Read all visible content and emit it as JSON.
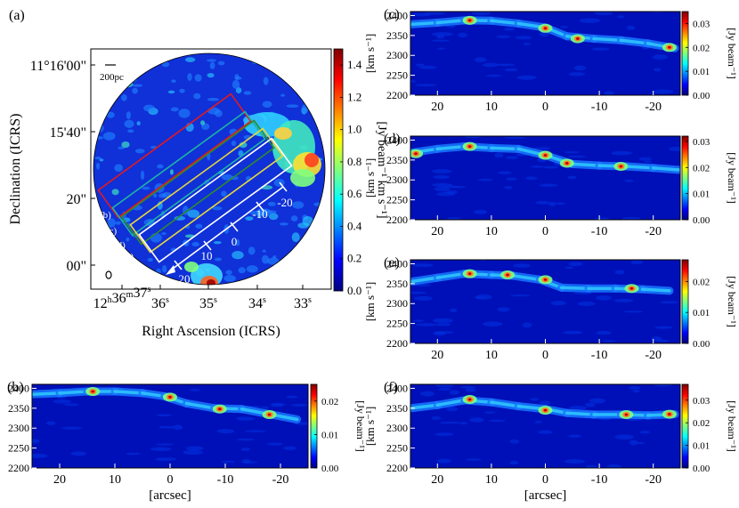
{
  "colorscale": [
    "#00007f",
    "#0000ff",
    "#007fff",
    "#00ffff",
    "#7fff7f",
    "#ffff00",
    "#ff7f00",
    "#ff0000",
    "#7f0000"
  ],
  "box_colors": {
    "b": "#e41a1c",
    "c": "#1fb3a3",
    "d": "#2e8b2e",
    "e": "#e6d83a",
    "f": "#ffffff"
  },
  "chart_data": [
    {
      "id": "a",
      "type": "heatmap",
      "panel_label": "(a)",
      "xlabel": "Right Ascension (ICRS)",
      "ylabel": "Declination (ICRS)",
      "x_ticks": [
        {
          "label": "12h36m37s",
          "html": [
            "12",
            "h",
            "36",
            "m",
            "37",
            "s"
          ]
        },
        {
          "label": "36s",
          "html": [
            "36",
            "s"
          ]
        },
        {
          "label": "35s",
          "html": [
            "35",
            "s"
          ]
        },
        {
          "label": "34s",
          "html": [
            "34",
            "s"
          ]
        },
        {
          "label": "33s",
          "html": [
            "33",
            "s"
          ]
        }
      ],
      "y_ticks": [
        "11°16'00\"",
        "15'40\"",
        "20\"",
        "00\""
      ],
      "colorbar": {
        "label": "[Jy beam⁻¹ km s⁻¹]",
        "min": 0.0,
        "max": 1.5,
        "ticks": [
          "0.0",
          "0.2",
          "0.4",
          "0.6",
          "0.8",
          "1.0",
          "1.2",
          "1.4"
        ]
      },
      "scalebar_label": "200pc",
      "slit_labels": [
        "(b)",
        "(c)",
        "(d)",
        "(e)",
        "(f)"
      ],
      "offset_ticks": [
        "20",
        "10",
        "0",
        "-10",
        "-20"
      ]
    },
    {
      "id": "b",
      "type": "heatmap",
      "panel_label": "(b)",
      "xlabel": "[arcsec]",
      "ylabel": "[km s⁻¹]",
      "x_ticks": [
        "20",
        "10",
        "0",
        "-10",
        "-20"
      ],
      "xlim": [
        25,
        -25
      ],
      "y_ticks": [
        "2400",
        "2350",
        "2300",
        "2250",
        "2200"
      ],
      "ylim": [
        2200,
        2410
      ],
      "colorbar": {
        "label": "[Jy beam⁻¹]",
        "max": 0.025,
        "ticks": [
          "0.00",
          "0.01",
          "0.02"
        ]
      },
      "ridge": [
        [
          25,
          2385
        ],
        [
          20,
          2388
        ],
        [
          15,
          2392
        ],
        [
          10,
          2392
        ],
        [
          5,
          2388
        ],
        [
          1,
          2380
        ],
        [
          -3,
          2362
        ],
        [
          -8,
          2350
        ],
        [
          -13,
          2348
        ],
        [
          -18,
          2335
        ],
        [
          -23,
          2322
        ]
      ],
      "peaks": [
        [
          14,
          2392
        ],
        [
          0,
          2378
        ],
        [
          -9,
          2348
        ],
        [
          -18,
          2334
        ]
      ]
    },
    {
      "id": "c",
      "type": "heatmap",
      "panel_label": "(c)",
      "xlabel": "",
      "ylabel": "[km s⁻¹]",
      "x_ticks": [
        "20",
        "10",
        "0",
        "-10",
        "-20"
      ],
      "xlim": [
        25,
        -25
      ],
      "y_ticks": [
        "2400",
        "2350",
        "2300",
        "2250",
        "2200"
      ],
      "ylim": [
        2200,
        2410
      ],
      "colorbar": {
        "label": "[Jy beam⁻¹]",
        "max": 0.035,
        "ticks": [
          "0.00",
          "0.01",
          "0.02",
          "0.03"
        ]
      },
      "ridge": [
        [
          25,
          2378
        ],
        [
          20,
          2382
        ],
        [
          15,
          2388
        ],
        [
          10,
          2387
        ],
        [
          5,
          2380
        ],
        [
          0,
          2370
        ],
        [
          -4,
          2348
        ],
        [
          -9,
          2342
        ],
        [
          -14,
          2338
        ],
        [
          -19,
          2330
        ],
        [
          -24,
          2318
        ]
      ],
      "peaks": [
        [
          14,
          2388
        ],
        [
          0,
          2368
        ],
        [
          -6,
          2342
        ],
        [
          -23,
          2320
        ]
      ]
    },
    {
      "id": "d",
      "type": "heatmap",
      "panel_label": "(d)",
      "xlabel": "",
      "ylabel": "[km s⁻¹]",
      "x_ticks": [
        "20",
        "10",
        "0",
        "-10",
        "-20"
      ],
      "xlim": [
        25,
        -25
      ],
      "y_ticks": [
        "2400",
        "2350",
        "2300",
        "2250",
        "2200"
      ],
      "ylim": [
        2200,
        2410
      ],
      "colorbar": {
        "label": "[Jy beam⁻¹]",
        "max": 0.032,
        "ticks": [
          "0.00",
          "0.01",
          "0.02",
          "0.03"
        ]
      },
      "ridge": [
        [
          25,
          2368
        ],
        [
          20,
          2378
        ],
        [
          15,
          2384
        ],
        [
          10,
          2380
        ],
        [
          5,
          2378
        ],
        [
          0,
          2362
        ],
        [
          -5,
          2340
        ],
        [
          -10,
          2336
        ],
        [
          -15,
          2334
        ],
        [
          -20,
          2330
        ],
        [
          -25,
          2325
        ]
      ],
      "peaks": [
        [
          24,
          2366
        ],
        [
          14,
          2384
        ],
        [
          0,
          2362
        ],
        [
          -4,
          2342
        ],
        [
          -14,
          2334
        ]
      ]
    },
    {
      "id": "e",
      "type": "heatmap",
      "panel_label": "(e)",
      "xlabel": "",
      "ylabel": "[km s⁻¹]",
      "x_ticks": [
        "20",
        "10",
        "0",
        "-10",
        "-20"
      ],
      "xlim": [
        25,
        -25
      ],
      "y_ticks": [
        "2400",
        "2350",
        "2300",
        "2250",
        "2200"
      ],
      "ylim": [
        2200,
        2410
      ],
      "colorbar": {
        "label": "[Jy beam⁻¹]",
        "max": 0.027,
        "ticks": [
          "0.00",
          "0.01",
          "0.02"
        ]
      },
      "ridge": [
        [
          25,
          2355
        ],
        [
          20,
          2365
        ],
        [
          15,
          2375
        ],
        [
          10,
          2372
        ],
        [
          6,
          2370
        ],
        [
          1,
          2360
        ],
        [
          -3,
          2340
        ],
        [
          -8,
          2338
        ],
        [
          -13,
          2338
        ],
        [
          -18,
          2336
        ],
        [
          -23,
          2332
        ]
      ],
      "peaks": [
        [
          14,
          2375
        ],
        [
          7,
          2372
        ],
        [
          0,
          2360
        ],
        [
          -16,
          2338
        ]
      ]
    },
    {
      "id": "f",
      "type": "heatmap",
      "panel_label": "(f)",
      "xlabel": "[arcsec]",
      "ylabel": "[km s⁻¹]",
      "x_ticks": [
        "20",
        "10",
        "0",
        "-10",
        "-20"
      ],
      "xlim": [
        25,
        -25
      ],
      "y_ticks": [
        "2400",
        "2350",
        "2300",
        "2250",
        "2200"
      ],
      "ylim": [
        2200,
        2410
      ],
      "colorbar": {
        "label": "[Jy beam⁻¹]",
        "max": 0.037,
        "ticks": [
          "0.00",
          "0.01",
          "0.02",
          "0.03"
        ]
      },
      "ridge": [
        [
          25,
          2350
        ],
        [
          20,
          2358
        ],
        [
          15,
          2370
        ],
        [
          10,
          2365
        ],
        [
          5,
          2355
        ],
        [
          0,
          2348
        ],
        [
          -4,
          2338
        ],
        [
          -9,
          2334
        ],
        [
          -14,
          2334
        ],
        [
          -19,
          2332
        ],
        [
          -24,
          2335
        ]
      ],
      "peaks": [
        [
          14,
          2372
        ],
        [
          0,
          2345
        ],
        [
          -15,
          2334
        ],
        [
          -23,
          2335
        ]
      ]
    }
  ]
}
